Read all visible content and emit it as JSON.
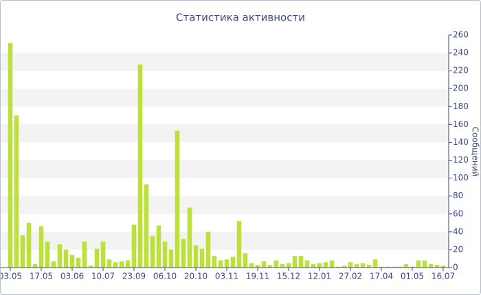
{
  "chart_data": {
    "type": "bar",
    "title": "Статистика активности",
    "y_label": "Сообщений",
    "categories": [
      "03.05",
      null,
      null,
      null,
      null,
      "17.05",
      null,
      null,
      null,
      null,
      "03.06",
      null,
      null,
      null,
      null,
      "10.07",
      null,
      null,
      null,
      null,
      "23.09",
      null,
      null,
      null,
      null,
      "06.10",
      null,
      null,
      null,
      null,
      "20.10",
      null,
      null,
      null,
      null,
      "03.11",
      null,
      null,
      null,
      null,
      "19.11",
      null,
      null,
      null,
      null,
      "15.12",
      null,
      null,
      null,
      null,
      "12.01",
      null,
      null,
      null,
      null,
      "27.02",
      null,
      null,
      null,
      null,
      "17.04",
      null,
      null,
      null,
      null,
      "01.05",
      null,
      null,
      null,
      null,
      "16.07"
    ],
    "values": [
      251,
      170,
      36,
      50,
      4,
      46,
      29,
      7,
      26,
      20,
      14,
      11,
      29,
      2,
      21,
      29,
      9,
      6,
      7,
      8,
      48,
      227,
      93,
      35,
      47,
      29,
      20,
      153,
      32,
      67,
      25,
      21,
      40,
      13,
      8,
      9,
      12,
      52,
      16,
      5,
      3,
      7,
      3,
      8,
      4,
      5,
      13,
      13,
      8,
      4,
      5,
      6,
      8,
      1,
      2,
      6,
      4,
      5,
      3,
      9,
      1,
      1,
      1,
      1,
      4,
      1,
      8,
      8,
      4,
      3,
      2
    ],
    "color": "#bce03c",
    "ylim": [
      0,
      260
    ],
    "yticks": [
      0,
      20,
      40,
      60,
      80,
      100,
      120,
      140,
      160,
      180,
      200,
      220,
      240,
      260
    ],
    "grid": "bands"
  }
}
